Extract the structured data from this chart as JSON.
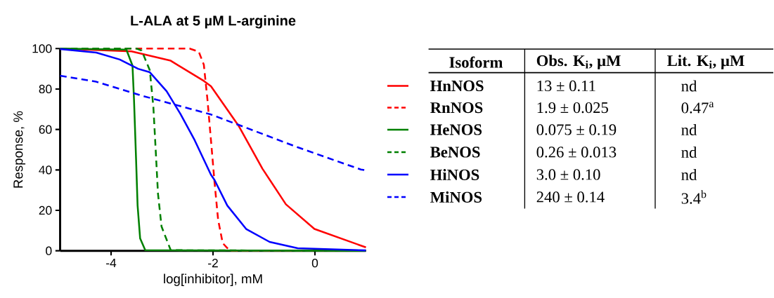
{
  "chart_data": {
    "type": "line",
    "title": "L-ALA at 5 µM L-arginine",
    "xlabel": "log[inhibitor], mM",
    "ylabel": "Response, %",
    "xlim": [
      -5,
      1
    ],
    "ylim": [
      0,
      100
    ],
    "xticks": [
      -4,
      -2,
      0
    ],
    "yticks": [
      0,
      20,
      40,
      60,
      80,
      100
    ],
    "legend": "right",
    "legend_title": "Isoform",
    "annotations": [
      "Obs. K$_{i}$, µM",
      "Lit. K$_{i}$, µM",
      "13 ± 0.11",
      "nd",
      "1.9 ± 0.025",
      "0.47$^{a}$",
      "0.075 ± 0.19",
      "nd",
      "0.26 ± 0.013",
      "nd",
      "3.0 ± 0.10",
      "nd",
      "240 ± 0.14",
      "3.4$^{b}$"
    ],
    "series": [
      {
        "name": "HnNOS",
        "color": "#ff0000",
        "line_style": "solid",
        "x": [
          -5,
          -4.5,
          -3.6,
          -2.83,
          -2.18,
          -2.04,
          -1.49,
          -1.03,
          -0.57,
          -0.01,
          1
        ],
        "values": [
          100,
          99.5,
          98.6,
          94,
          84,
          81.4,
          61.5,
          40.6,
          23,
          10.8,
          1.7
        ]
      },
      {
        "name": "RnNOS",
        "color": "#ff0000",
        "line_style": "dashed",
        "x": [
          -5,
          -2.46,
          -2.28,
          -2.18,
          -2.11,
          -2.04,
          -1.97,
          -1.9,
          -1.81,
          -1.67,
          1
        ],
        "values": [
          100,
          100,
          98.5,
          92,
          75,
          54.6,
          33.9,
          15.4,
          3.8,
          0,
          0
        ]
      },
      {
        "name": "HeNOS",
        "color": "#008000",
        "line_style": "solid",
        "x": [
          -5,
          -3.7,
          -3.58,
          -3.55,
          -3.51,
          -3.48,
          -3.43,
          -3.33,
          1
        ],
        "values": [
          100,
          99.5,
          91.6,
          74.6,
          45.5,
          22.5,
          6.1,
          0.3,
          0
        ]
      },
      {
        "name": "BeNOS",
        "color": "#008000",
        "line_style": "dashed",
        "x": [
          -5,
          -3.5,
          -3.4,
          -3.24,
          -3.17,
          -3.12,
          -3.08,
          -3.01,
          -2.83,
          1
        ],
        "values": [
          100,
          100,
          99,
          89.3,
          71,
          47.6,
          28.3,
          12,
          0.3,
          0
        ]
      },
      {
        "name": "HiNOS",
        "color": "#0000ff",
        "line_style": "solid",
        "x": [
          -5,
          -4.29,
          -3.83,
          -3.47,
          -3.24,
          -2.91,
          -2.64,
          -2.36,
          -2.04,
          -1.97,
          -1.72,
          -1.35,
          -0.89,
          -0.34,
          1
        ],
        "values": [
          99.8,
          98,
          94.6,
          90,
          88.3,
          78.9,
          67.7,
          54.7,
          37.6,
          35,
          22.4,
          10.8,
          4.4,
          1.3,
          0.2
        ]
      },
      {
        "name": "MiNOS",
        "color": "#0000ff",
        "line_style": "dashed",
        "x": [
          -5,
          -4.29,
          -3.38,
          -2.46,
          -2.04,
          -1.49,
          -0.34,
          0.9,
          1
        ],
        "values": [
          86.6,
          83.6,
          76.6,
          70.3,
          67.4,
          62.2,
          51.2,
          40.2,
          39.8
        ]
      }
    ]
  }
}
